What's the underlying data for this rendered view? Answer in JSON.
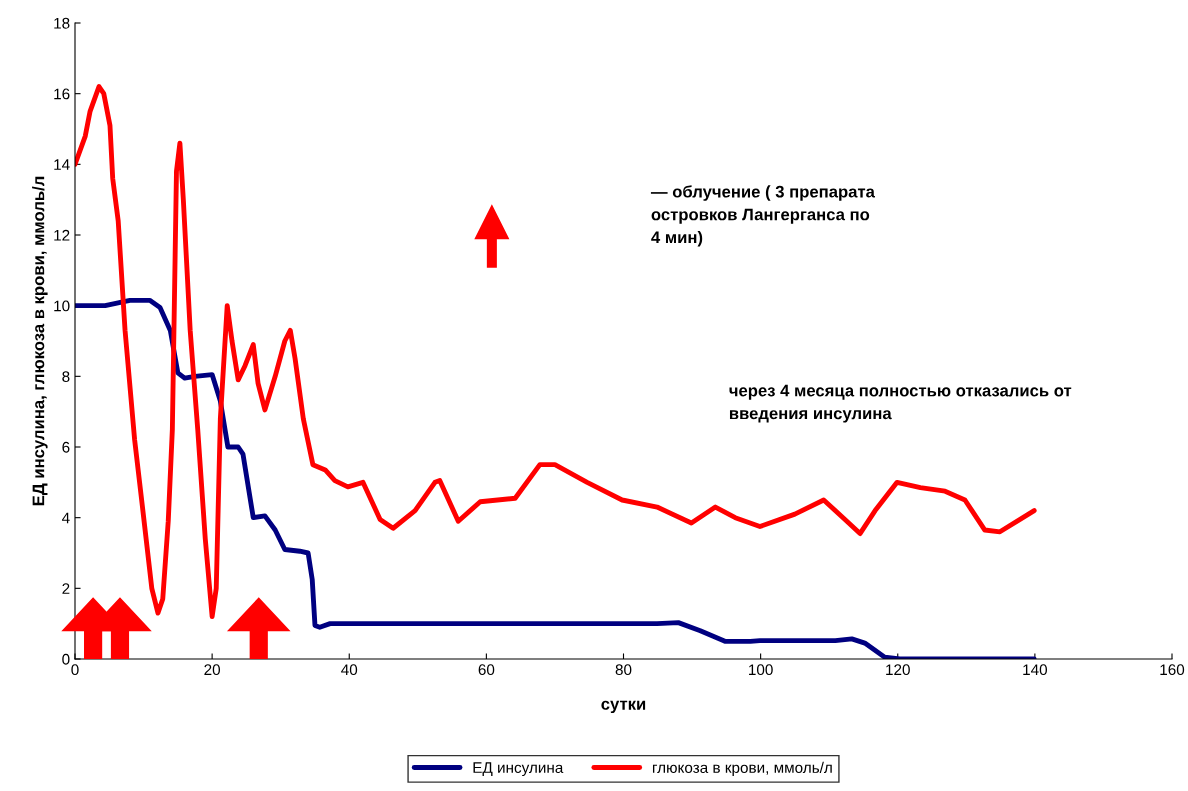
{
  "chart_data": {
    "type": "line",
    "xlabel": "сутки",
    "ylabel": "ЕД инсулина, глюкоза в крови, ммоль/л",
    "xlim": [
      0,
      160
    ],
    "xticks": [
      0,
      20,
      40,
      60,
      80,
      100,
      120,
      140,
      160
    ],
    "ylim": [
      0,
      18
    ],
    "yticks": [
      0,
      2,
      4,
      6,
      8,
      10,
      12,
      14,
      16,
      18
    ],
    "grid": false,
    "legend": "bottom",
    "marker": "none",
    "line_style": "solid",
    "annotations": [
      "— облучение ( 3 препарата\nостровков Лангерганса по\n4 мин)",
      "через 4 месяца полностью отказались от\nвведения инсулина"
    ],
    "series": [
      {
        "name": "ЕД инсулина",
        "color": "#000080",
        "x": [
          0,
          4.4,
          8.0,
          10.9,
          12.4,
          13.9,
          15.0,
          16.0,
          17.5,
          20.0,
          21.2,
          22.3,
          23.8,
          24.5,
          26.0,
          27.7,
          29.2,
          30.6,
          32.8,
          34.0,
          34.6,
          35.0,
          35.7,
          37.2,
          47.4,
          84.9,
          88.0,
          91.2,
          94.8,
          98.5,
          99.9,
          110.9,
          113.3,
          115.2,
          118.1,
          120.3,
          124.7,
          139.9
        ],
        "values": [
          10.0,
          10.0,
          10.15,
          10.15,
          9.95,
          9.3,
          8.1,
          7.95,
          8.0,
          8.05,
          7.3,
          6.0,
          6.0,
          5.8,
          4.0,
          4.05,
          3.65,
          3.1,
          3.05,
          3.0,
          2.25,
          0.95,
          0.9,
          1.0,
          1.0,
          1.0,
          1.03,
          0.8,
          0.5,
          0.5,
          0.52,
          0.52,
          0.57,
          0.45,
          0.05,
          0,
          0,
          0
        ]
      },
      {
        "name": "глюкоза в крови, ммоль/л",
        "color": "#ff0000",
        "x": [
          0,
          1.5,
          2.2,
          3.5,
          4.2,
          5.1,
          5.5,
          6.3,
          7.3,
          8.7,
          9.9,
          11.2,
          12.1,
          12.8,
          13.6,
          14.2,
          14.8,
          15.3,
          15.8,
          16.8,
          17.9,
          19.0,
          20.0,
          20.6,
          21.2,
          22.2,
          22.9,
          23.8,
          24.8,
          26.0,
          26.7,
          27.7,
          29.2,
          30.6,
          31.4,
          32.1,
          33.3,
          34.7,
          36.5,
          37.9,
          39.8,
          42.0,
          44.5,
          46.4,
          49.6,
          52.5,
          53.2,
          55.9,
          59.1,
          64.2,
          67.8,
          70.0,
          74.7,
          79.8,
          84.9,
          89.9,
          93.4,
          96.3,
          99.9,
          105.0,
          109.2,
          112.3,
          114.5,
          116.7,
          119.9,
          123.3,
          126.9,
          129.8,
          132.7,
          134.9,
          139.9
        ],
        "values": [
          14.0,
          14.8,
          15.5,
          16.2,
          16.0,
          15.1,
          13.6,
          12.4,
          9.3,
          6.2,
          4.2,
          2.0,
          1.3,
          1.7,
          3.9,
          6.5,
          13.8,
          14.6,
          13.0,
          9.3,
          6.5,
          3.4,
          1.2,
          2.0,
          6.8,
          10.0,
          9.0,
          7.9,
          8.3,
          8.9,
          7.8,
          7.05,
          8.0,
          9.0,
          9.3,
          8.5,
          6.8,
          5.5,
          5.35,
          5.05,
          4.87,
          5.0,
          3.95,
          3.7,
          4.2,
          5.0,
          5.05,
          3.9,
          4.45,
          4.55,
          5.5,
          5.5,
          5.0,
          4.5,
          4.3,
          3.85,
          4.3,
          4.0,
          3.75,
          4.1,
          4.5,
          3.95,
          3.55,
          4.2,
          5.0,
          4.85,
          4.75,
          4.5,
          3.65,
          3.6,
          4.2
        ]
      }
    ]
  }
}
